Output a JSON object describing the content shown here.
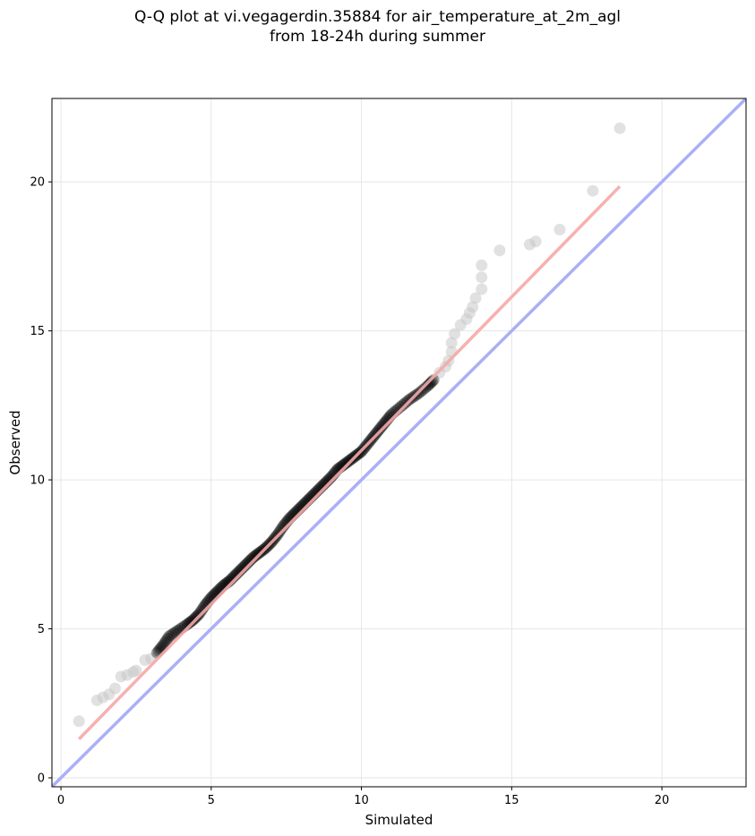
{
  "chart_data": {
    "type": "scatter",
    "title": "Q-Q plot at vi.vegagerdin.35884 for air_temperature_at_2m_agl",
    "subtitle": "from 18-24h during summer",
    "xlabel": "Simulated",
    "ylabel": "Observed",
    "xlim": [
      -0.3,
      22.8
    ],
    "ylim": [
      -0.3,
      22.8
    ],
    "xticks": [
      0,
      5,
      10,
      15,
      20
    ],
    "yticks": [
      0,
      5,
      10,
      15,
      20
    ],
    "grid": true,
    "colors": {
      "identity_line": "#aab0f5",
      "fit_line": "#f5a9a9",
      "points": "#000000",
      "tail_points": "#c8c8c8"
    },
    "identity_line": {
      "x": [
        -0.3,
        22.8
      ],
      "y": [
        -0.3,
        22.8
      ]
    },
    "fit_line": {
      "x": [
        0.6,
        18.6
      ],
      "y": [
        1.3,
        19.85
      ]
    },
    "tail_points": [
      [
        0.6,
        1.9
      ],
      [
        1.2,
        2.6
      ],
      [
        1.4,
        2.7
      ],
      [
        1.6,
        2.8
      ],
      [
        1.8,
        3.0
      ],
      [
        2.0,
        3.4
      ],
      [
        2.2,
        3.45
      ],
      [
        2.4,
        3.55
      ],
      [
        2.5,
        3.6
      ],
      [
        2.8,
        3.95
      ],
      [
        3.0,
        4.0
      ],
      [
        12.6,
        13.6
      ],
      [
        12.8,
        13.8
      ],
      [
        12.9,
        14.0
      ],
      [
        13.0,
        14.3
      ],
      [
        13.0,
        14.6
      ],
      [
        13.1,
        14.9
      ],
      [
        13.3,
        15.2
      ],
      [
        13.5,
        15.4
      ],
      [
        13.6,
        15.6
      ],
      [
        13.7,
        15.8
      ],
      [
        13.8,
        16.1
      ],
      [
        14.0,
        16.4
      ],
      [
        14.0,
        16.8
      ],
      [
        14.0,
        17.2
      ],
      [
        14.6,
        17.7
      ],
      [
        15.6,
        17.9
      ],
      [
        15.8,
        18.0
      ],
      [
        16.6,
        18.4
      ],
      [
        17.7,
        19.7
      ],
      [
        18.6,
        21.8
      ]
    ],
    "dense_points": [
      [
        3.2,
        4.2
      ],
      [
        3.4,
        4.45
      ],
      [
        3.6,
        4.75
      ],
      [
        3.9,
        4.95
      ],
      [
        4.2,
        5.15
      ],
      [
        4.4,
        5.3
      ],
      [
        4.6,
        5.5
      ],
      [
        4.8,
        5.8
      ],
      [
        5.0,
        6.05
      ],
      [
        5.2,
        6.25
      ],
      [
        5.4,
        6.45
      ],
      [
        5.6,
        6.6
      ],
      [
        5.8,
        6.8
      ],
      [
        6.0,
        7.0
      ],
      [
        6.2,
        7.2
      ],
      [
        6.4,
        7.4
      ],
      [
        6.6,
        7.55
      ],
      [
        6.8,
        7.7
      ],
      [
        7.0,
        7.9
      ],
      [
        7.2,
        8.15
      ],
      [
        7.4,
        8.45
      ],
      [
        7.6,
        8.7
      ],
      [
        7.8,
        8.9
      ],
      [
        8.0,
        9.1
      ],
      [
        8.2,
        9.3
      ],
      [
        8.4,
        9.5
      ],
      [
        8.6,
        9.7
      ],
      [
        8.8,
        9.9
      ],
      [
        9.0,
        10.1
      ],
      [
        9.2,
        10.35
      ],
      [
        9.4,
        10.5
      ],
      [
        9.6,
        10.65
      ],
      [
        9.8,
        10.8
      ],
      [
        10.0,
        10.95
      ],
      [
        10.2,
        11.2
      ],
      [
        10.4,
        11.45
      ],
      [
        10.6,
        11.7
      ],
      [
        10.8,
        11.95
      ],
      [
        11.0,
        12.2
      ],
      [
        11.3,
        12.45
      ],
      [
        11.6,
        12.7
      ],
      [
        11.9,
        12.9
      ],
      [
        12.2,
        13.15
      ],
      [
        12.4,
        13.35
      ]
    ]
  }
}
